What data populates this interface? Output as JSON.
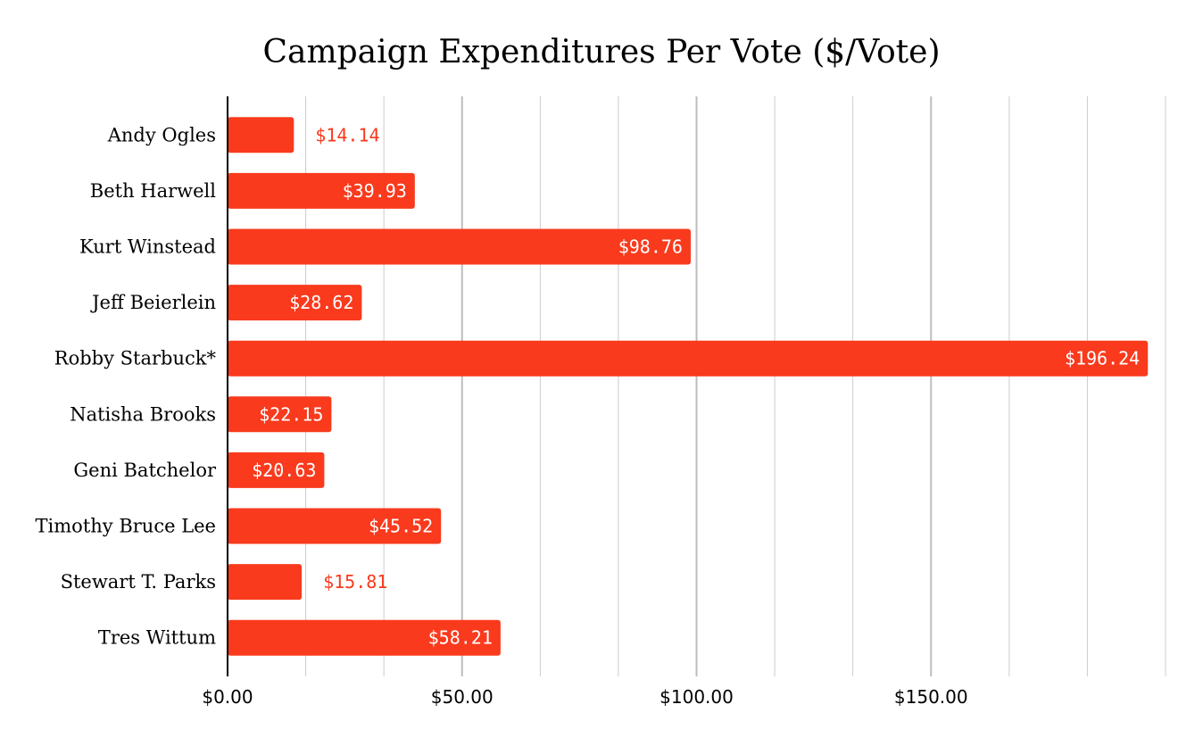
{
  "chart_data": {
    "type": "bar",
    "orientation": "horizontal",
    "title": "Campaign Expenditures Per Vote ($/Vote)",
    "xlabel": "",
    "ylabel": "",
    "categories": [
      "Andy Ogles",
      "Beth Harwell",
      "Kurt Winstead",
      "Jeff Beierlein",
      "Robby Starbuck*",
      "Natisha Brooks",
      "Geni Batchelor",
      "Timothy Bruce Lee",
      "Stewart T. Parks",
      "Tres Wittum"
    ],
    "values": [
      14.14,
      39.93,
      98.76,
      28.62,
      196.24,
      22.15,
      20.63,
      45.52,
      15.81,
      58.21
    ],
    "data_labels": [
      "$14.14",
      "$39.93",
      "$98.76",
      "$28.62",
      "$196.24",
      "$22.15",
      "$20.63",
      "$45.52",
      "$15.81",
      "$58.21"
    ],
    "xlim": [
      0,
      200
    ],
    "x_ticks": [
      0,
      50,
      100,
      150
    ],
    "x_tick_labels": [
      "$0.00",
      "$50.00",
      "$100.00",
      "$150.00"
    ],
    "minor_gridlines": [
      16.67,
      33.33,
      66.67,
      83.33,
      116.67,
      133.33,
      166.67,
      183.33,
      200
    ],
    "grid": true,
    "legend": "none",
    "colors": {
      "bar": "#f93a1d",
      "label_inside": "#ffffff",
      "label_outside": "#f93a1d",
      "grid": "#cccccc",
      "axis": "#000000"
    }
  }
}
